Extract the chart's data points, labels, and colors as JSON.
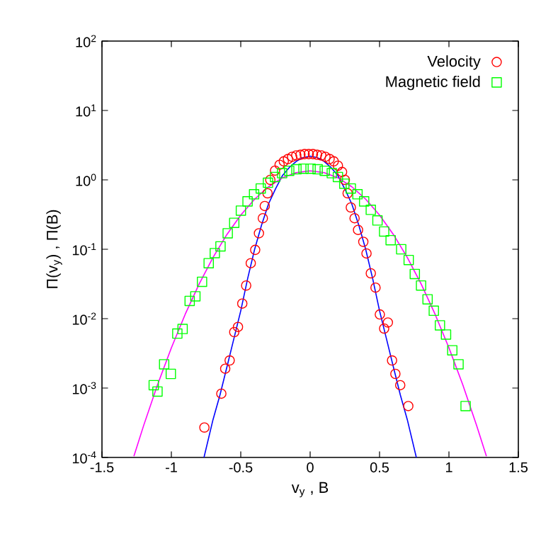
{
  "chart_data": {
    "type": "scatter",
    "xlabel": "v$_{y}$ , B",
    "ylabel": "Π(v$_{y}$) , Π(B)",
    "log": "y",
    "xlim": [
      -1.5,
      1.5
    ],
    "ylim": [
      0.0001,
      100
    ],
    "xticks": [
      -1.5,
      -1,
      -0.5,
      0,
      0.5,
      1,
      1.5
    ],
    "yticks": [
      {
        "value": 0.0001,
        "label": "10$^{-4}$"
      },
      {
        "value": 0.001,
        "label": "10$^{-3}$"
      },
      {
        "value": 0.01,
        "label": "10$^{-2}$"
      },
      {
        "value": 0.1,
        "label": "10$^{-1}$"
      },
      {
        "value": 1,
        "label": "10$^{0}$"
      },
      {
        "value": 10,
        "label": "10$^{1}$"
      },
      {
        "value": 100,
        "label": "10$^{2}$"
      }
    ],
    "legend": "top right",
    "grid": false,
    "series": [
      {
        "name": "Velocity",
        "marker": "circle",
        "color": "#ff0000",
        "x": [
          -0.762,
          -0.64,
          -0.612,
          -0.58,
          -0.547,
          -0.52,
          -0.489,
          -0.461,
          -0.428,
          -0.396,
          -0.369,
          -0.341,
          -0.327,
          -0.307,
          -0.287,
          -0.253,
          -0.22,
          -0.19,
          -0.16,
          -0.13,
          -0.1,
          -0.07,
          -0.04,
          -0.01,
          0.02,
          0.05,
          0.08,
          0.11,
          0.14,
          0.17,
          0.2,
          0.23,
          0.25,
          0.27,
          0.293,
          0.32,
          0.345,
          0.383,
          0.406,
          0.437,
          0.471,
          0.502,
          0.533,
          0.56,
          0.59,
          0.614,
          0.649,
          0.707
        ],
        "values": [
          0.00027,
          0.00083,
          0.0019,
          0.0025,
          0.0064,
          0.0076,
          0.0165,
          0.03,
          0.063,
          0.098,
          0.17,
          0.28,
          0.42,
          0.64,
          1.0,
          1.36,
          1.65,
          1.85,
          2.0,
          2.15,
          2.25,
          2.3,
          2.35,
          2.35,
          2.35,
          2.3,
          2.25,
          2.15,
          2.0,
          1.85,
          1.6,
          1.3,
          1.0,
          0.64,
          0.4,
          0.28,
          0.19,
          0.128,
          0.087,
          0.045,
          0.028,
          0.0115,
          0.0072,
          0.0088,
          0.0025,
          0.0016,
          0.0011,
          0.00055
        ]
      },
      {
        "name": "Magnetic field",
        "marker": "square",
        "color": "#00ff00",
        "x": [
          -1.127,
          -1.1,
          -1.052,
          -1.004,
          -0.957,
          -0.919,
          -0.868,
          -0.827,
          -0.779,
          -0.731,
          -0.687,
          -0.646,
          -0.594,
          -0.547,
          -0.499,
          -0.451,
          -0.404,
          -0.356,
          -0.304,
          -0.253,
          -0.202,
          -0.151,
          -0.099,
          -0.048,
          0.003,
          0.054,
          0.105,
          0.156,
          0.2,
          0.246,
          0.293,
          0.341,
          0.389,
          0.437,
          0.485,
          0.533,
          0.58,
          0.656,
          0.71,
          0.754,
          0.799,
          0.846,
          0.891,
          0.935,
          0.979,
          1.024,
          1.069,
          1.12
        ],
        "values": [
          0.0011,
          0.00089,
          0.0022,
          0.0016,
          0.0061,
          0.0071,
          0.018,
          0.021,
          0.034,
          0.063,
          0.088,
          0.11,
          0.17,
          0.24,
          0.36,
          0.49,
          0.62,
          0.75,
          0.91,
          1.1,
          1.25,
          1.35,
          1.42,
          1.45,
          1.45,
          1.42,
          1.35,
          1.25,
          1.1,
          0.88,
          0.75,
          0.62,
          0.49,
          0.37,
          0.26,
          0.18,
          0.135,
          0.1,
          0.07,
          0.044,
          0.03,
          0.019,
          0.013,
          0.008,
          0.0059,
          0.0035,
          0.0022,
          0.00055
        ]
      },
      {
        "type": "line",
        "marker": "none",
        "line_style": "solid",
        "color": "#0000ff",
        "x": [
          -0.765,
          -0.7,
          -0.65,
          -0.6,
          -0.55,
          -0.5,
          -0.45,
          -0.4,
          -0.35,
          -0.3,
          -0.25,
          -0.2,
          -0.15,
          -0.1,
          -0.05,
          0,
          0.05,
          0.1,
          0.15,
          0.2,
          0.25,
          0.3,
          0.35,
          0.4,
          0.45,
          0.5,
          0.55,
          0.6,
          0.65,
          0.7,
          0.765
        ],
        "values": [
          0.0001,
          0.00035,
          0.00079,
          0.002,
          0.0051,
          0.013,
          0.038,
          0.1,
          0.224,
          0.45,
          0.74,
          1.15,
          1.51,
          1.85,
          2.1,
          2.2,
          2.1,
          1.85,
          1.51,
          1.15,
          0.74,
          0.45,
          0.224,
          0.1,
          0.038,
          0.013,
          0.0051,
          0.002,
          0.00079,
          0.00035,
          0.0001
        ]
      },
      {
        "type": "line",
        "marker": "none",
        "line_style": "solid",
        "color": "#ff00ff",
        "x": [
          -1.27,
          -1.2,
          -1.1,
          -1.0,
          -0.9,
          -0.8,
          -0.7,
          -0.6,
          -0.5,
          -0.4,
          -0.3,
          -0.2,
          -0.1,
          0,
          0.1,
          0.2,
          0.3,
          0.4,
          0.5,
          0.6,
          0.7,
          0.8,
          0.9,
          1.0,
          1.1,
          1.2,
          1.27
        ],
        "values": [
          0.000104,
          0.000287,
          0.00111,
          0.0038,
          0.0116,
          0.0315,
          0.076,
          0.163,
          0.311,
          0.527,
          0.795,
          1.07,
          1.27,
          1.35,
          1.27,
          1.07,
          0.795,
          0.527,
          0.311,
          0.163,
          0.076,
          0.0315,
          0.0116,
          0.0038,
          0.00111,
          0.000287,
          0.000104
        ]
      }
    ]
  }
}
